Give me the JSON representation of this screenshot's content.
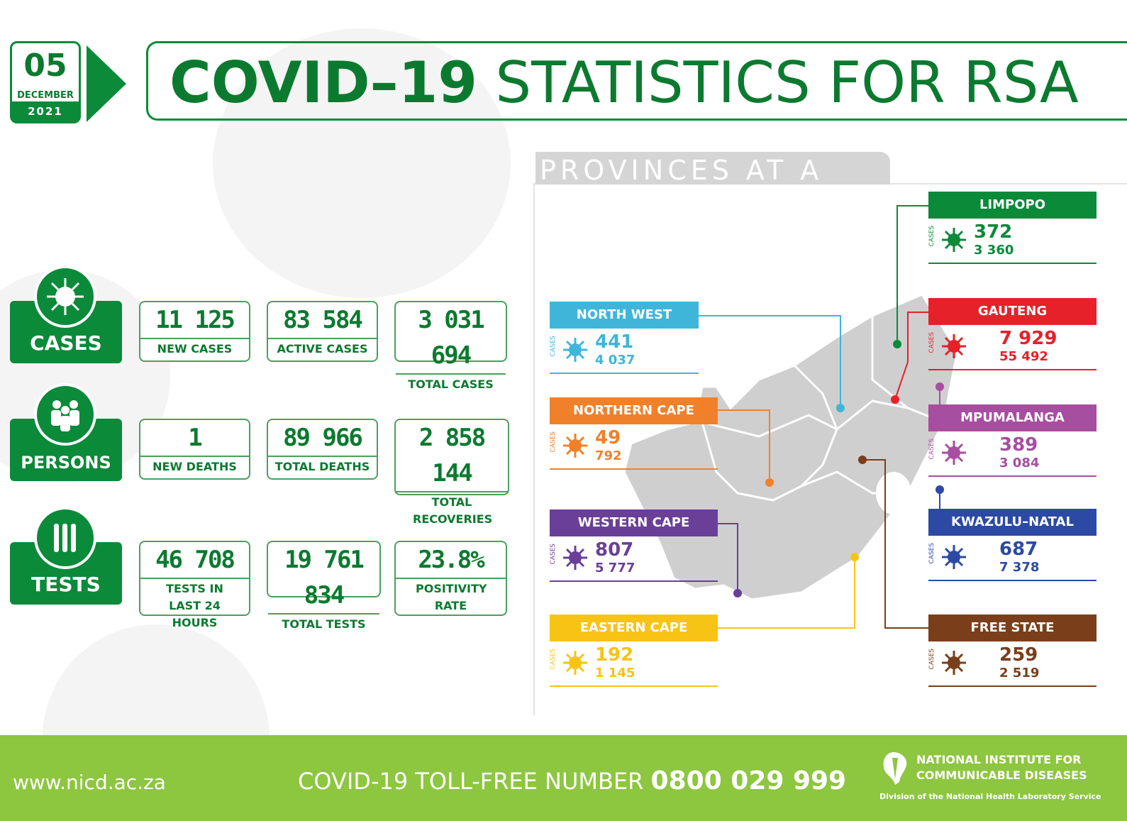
{
  "date": {
    "day": "05",
    "month": "DECEMBER",
    "year": "2021"
  },
  "title": {
    "bold": "COVID–19",
    "rest": "STATISTICS FOR RSA"
  },
  "categories": {
    "cases": "CASES",
    "persons": "PERSONS",
    "tests": "TESTS"
  },
  "stats": {
    "new_cases": {
      "value": "11 125",
      "label": "NEW CASES"
    },
    "active_cases": {
      "value": "83 584",
      "label": "ACTIVE CASES"
    },
    "total_cases": {
      "value": "3 031 694",
      "label": "TOTAL CASES"
    },
    "new_deaths": {
      "value": "1",
      "label": "NEW DEATHS"
    },
    "total_deaths": {
      "value": "89 966",
      "label": "TOTAL DEATHS"
    },
    "total_recoveries": {
      "value": "2 858 144",
      "label": "TOTAL RECOVERIES"
    },
    "tests_24h": {
      "value": "46 708",
      "label": "TESTS IN LAST 24 HOURS"
    },
    "total_tests": {
      "value": "19 761 834",
      "label": "TOTAL TESTS"
    },
    "positivity": {
      "value": "23.8%",
      "label": "POSITIVITY RATE"
    }
  },
  "provinces_heading": "PROVINCES AT A GLANCE",
  "cases_label": "CASES",
  "provinces": {
    "limpopo": {
      "name": "LIMPOPO",
      "new": "372",
      "total": "3 360",
      "color": "#0b8a3a"
    },
    "north_west": {
      "name": "NORTH WEST",
      "new": "441",
      "total": "4 037",
      "color": "#3fb6d9"
    },
    "gauteng": {
      "name": "GAUTENG",
      "new": "7 929",
      "total": "55 492",
      "color": "#e62129"
    },
    "northern_cape": {
      "name": "NORTHERN CAPE",
      "new": "49",
      "total": "792",
      "color": "#f0812a"
    },
    "mpumalanga": {
      "name": "MPUMALANGA",
      "new": "389",
      "total": "3 084",
      "color": "#a64ea0"
    },
    "western_cape": {
      "name": "WESTERN CAPE",
      "new": "807",
      "total": "5 777",
      "color": "#6a3f98"
    },
    "kwazulu_natal": {
      "name": "KWAZULU–NATAL",
      "new": "687",
      "total": "7 378",
      "color": "#2c4aa3"
    },
    "eastern_cape": {
      "name": "EASTERN CAPE",
      "new": "192",
      "total": "1 145",
      "color": "#f7c416"
    },
    "free_state": {
      "name": "FREE STATE",
      "new": "259",
      "total": "2 519",
      "color": "#7a3e1a"
    }
  },
  "footer": {
    "url": "www.nicd.ac.za",
    "toll_label": "COVID-19 TOLL-FREE NUMBER",
    "toll_number": "0800 029 999",
    "org_line1": "NATIONAL INSTITUTE FOR",
    "org_line2": "COMMUNICABLE DISEASES",
    "division": "Division of the National Health Laboratory Service"
  }
}
